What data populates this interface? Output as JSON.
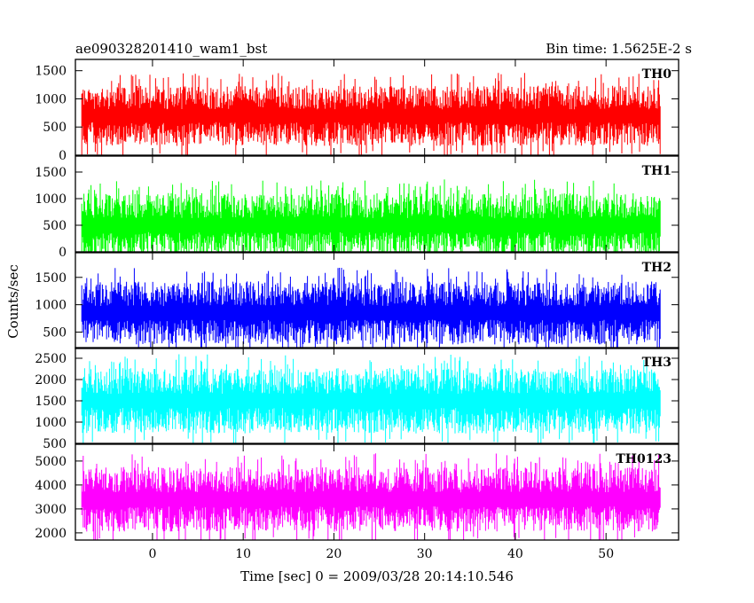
{
  "header": {
    "left_title": "ae090328201410_wam1_bst",
    "right_title": "Bin time: 1.5625E-2 s"
  },
  "chart_data": {
    "type": "line",
    "title": "ae090328201410_wam1_bst",
    "subtitle": "Bin time: 1.5625E-2 s",
    "xlabel": "Time [sec] 0 = 2009/03/28 20:14:10.546",
    "ylabel": "Counts/sec",
    "xlim": [
      -8.5,
      58
    ],
    "x_ticks": [
      0,
      10,
      20,
      30,
      40,
      50
    ],
    "x_range_data": [
      -7.8,
      56
    ],
    "grid": false,
    "panels": [
      {
        "name": "TH0",
        "color": "#ff0000",
        "ylim": [
          0,
          1700
        ],
        "y_ticks": [
          0,
          500,
          1000,
          1500
        ],
        "mean": 700,
        "low": 120,
        "high": 1650
      },
      {
        "name": "TH1",
        "color": "#00ff00",
        "ylim": [
          0,
          1800
        ],
        "y_ticks": [
          0,
          500,
          1000,
          1500
        ],
        "mean": 500,
        "low": 20,
        "high": 1750
      },
      {
        "name": "TH2",
        "color": "#0000ff",
        "ylim": [
          200,
          1950
        ],
        "y_ticks": [
          500,
          1000,
          1500
        ],
        "mean": 850,
        "low": 250,
        "high": 1900
      },
      {
        "name": "TH3",
        "color": "#00ffff",
        "ylim": [
          500,
          2750
        ],
        "y_ticks": [
          500,
          1000,
          1500,
          2000,
          2500
        ],
        "mean": 1500,
        "low": 550,
        "high": 2750
      },
      {
        "name": "TH0123",
        "color": "#ff00ff",
        "ylim": [
          1700,
          5700
        ],
        "y_ticks": [
          2000,
          3000,
          4000,
          5000
        ],
        "mean": 3400,
        "low": 1750,
        "high": 5600
      }
    ]
  }
}
